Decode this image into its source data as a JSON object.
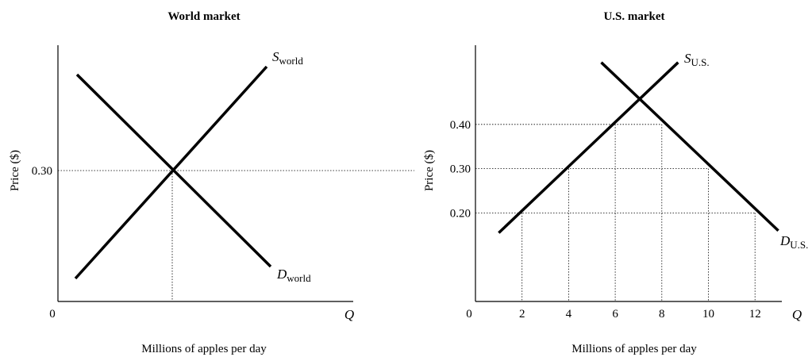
{
  "chart_data": [
    {
      "type": "line",
      "title": "World market",
      "xlabel": "Millions of apples per day",
      "ylabel": "Price ($)",
      "x_axis_letter": "Q",
      "origin_label": "0",
      "y_ticks": [
        {
          "value": 0.3,
          "label": "0.30"
        }
      ],
      "x_ticks": [],
      "equilibrium": {
        "price": 0.3
      },
      "series": [
        {
          "id": "supply",
          "label_main": "S",
          "label_sub": "world"
        },
        {
          "id": "demand",
          "label_main": "D",
          "label_sub": "world"
        }
      ]
    },
    {
      "type": "line",
      "title": "U.S. market",
      "xlabel": "Millions of apples per day",
      "ylabel": "Price ($)",
      "x_axis_letter": "Q",
      "origin_label": "0",
      "xlim": [
        0,
        14
      ],
      "ylim": [
        0,
        0.55
      ],
      "y_ticks": [
        {
          "value": 0.2,
          "label": "0.20"
        },
        {
          "value": 0.3,
          "label": "0.30"
        },
        {
          "value": 0.4,
          "label": "0.40"
        }
      ],
      "x_ticks": [
        {
          "value": 2,
          "label": "2"
        },
        {
          "value": 4,
          "label": "4"
        },
        {
          "value": 6,
          "label": "6"
        },
        {
          "value": 8,
          "label": "8"
        },
        {
          "value": 10,
          "label": "10"
        },
        {
          "value": 12,
          "label": "12"
        }
      ],
      "guides": [
        {
          "price": 0.2,
          "qs": [
            2,
            12
          ]
        },
        {
          "price": 0.3,
          "qs": [
            4,
            10
          ]
        },
        {
          "price": 0.4,
          "qs": [
            6,
            8
          ]
        }
      ],
      "series": [
        {
          "id": "supply",
          "label_main": "S",
          "label_sub": "U.S.",
          "x": [
            1,
            8.7
          ],
          "y": [
            0.155,
            0.54
          ]
        },
        {
          "id": "demand",
          "label_main": "D",
          "label_sub": "U.S.",
          "x": [
            5.4,
            13
          ],
          "y": [
            0.54,
            0.16
          ]
        }
      ]
    }
  ]
}
